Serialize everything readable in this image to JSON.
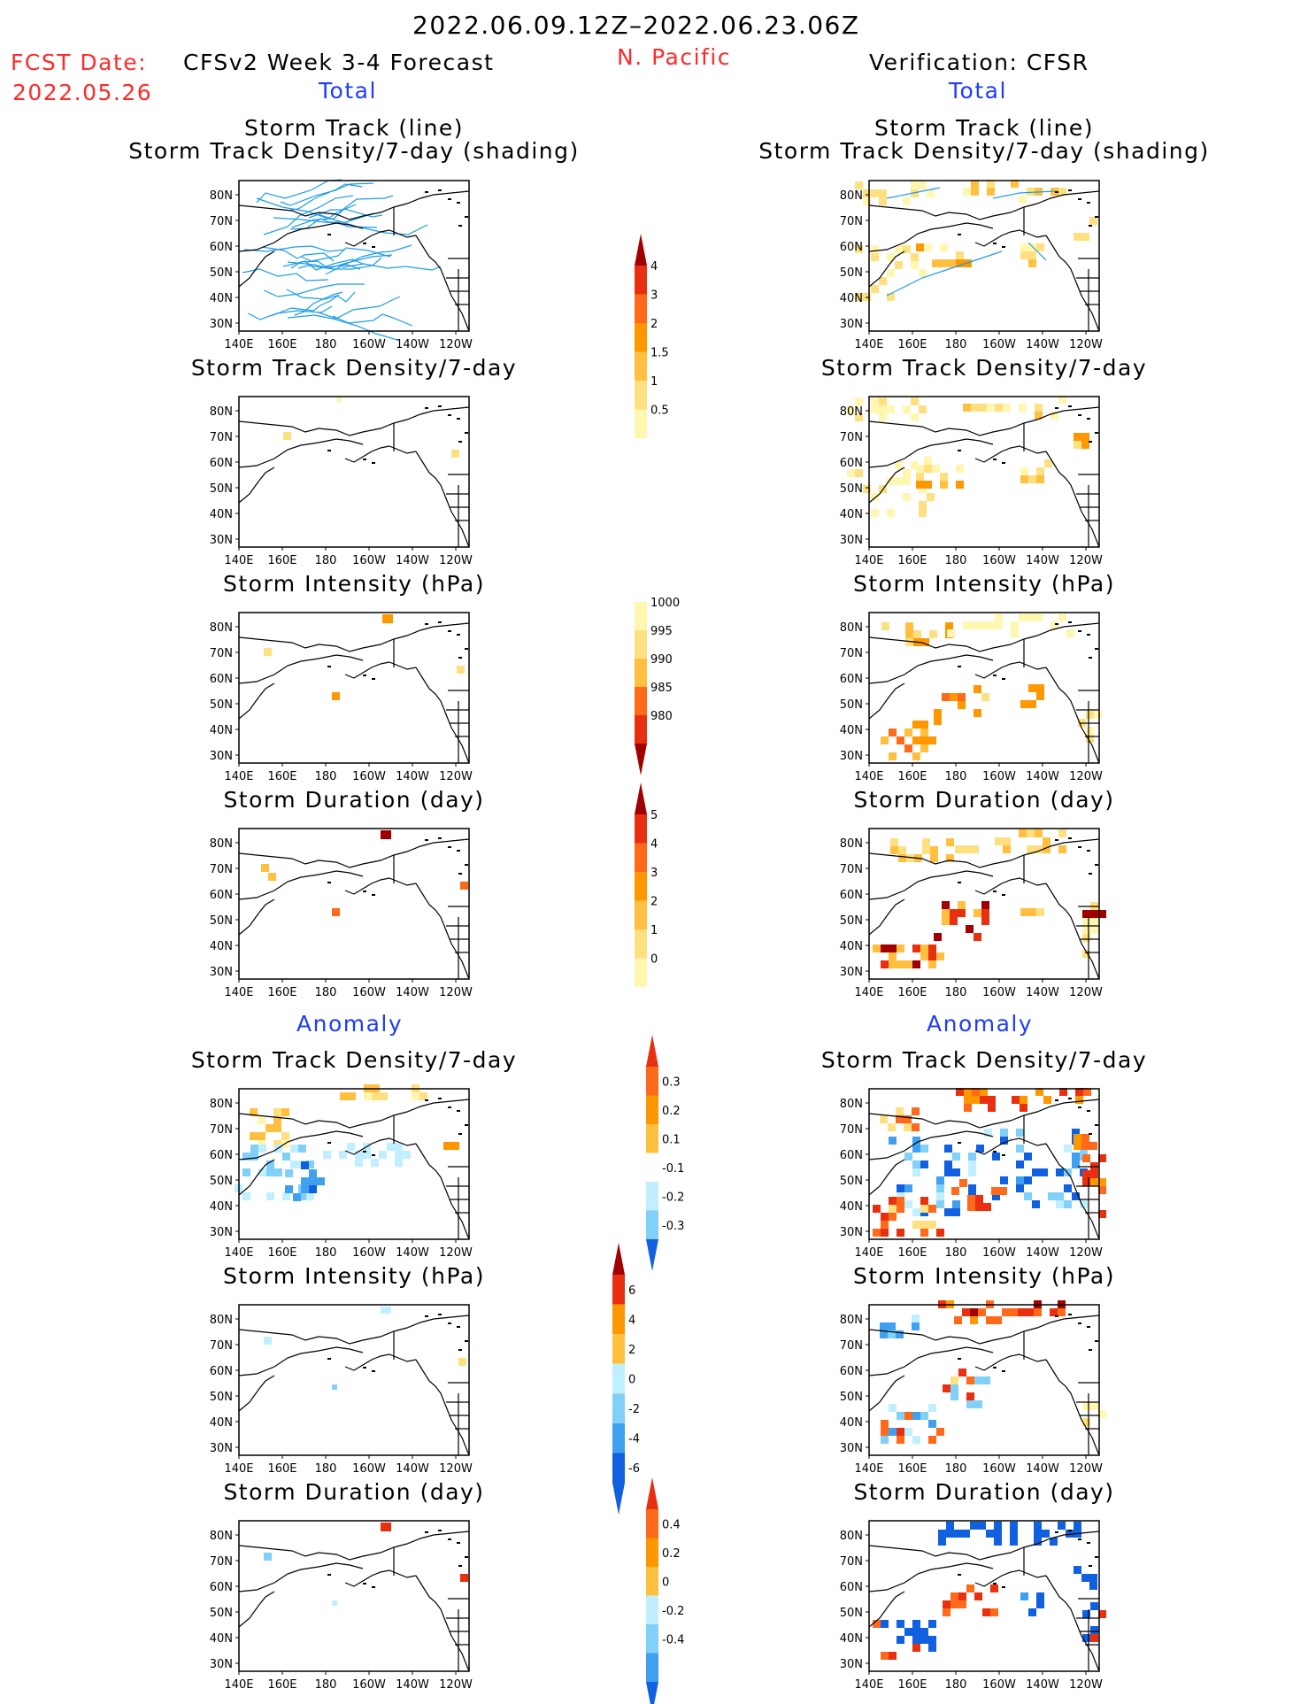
{
  "header": {
    "period": "2022.06.09.12Z–2022.06.23.06Z",
    "fcst_label": "FCST Date:",
    "fcst_date": "2022.05.26",
    "model_title": "CFSv2 Week 3-4 Forecast",
    "region": "N. Pacific",
    "verif_title": "Verification: CFSR",
    "total_left": "Total",
    "total_right": "Total",
    "anomaly_left": "Anomaly",
    "anomaly_right": "Anomaly"
  },
  "panel_titles": {
    "track_line": "Storm Track (line)",
    "track_shading": "Storm Track Density/7-day (shading)",
    "density": "Storm Track Density/7-day",
    "intensity": "Storm Intensity (hPa)",
    "duration": "Storm Duration (day)"
  },
  "axes": {
    "lat_labels": [
      "80N",
      "70N",
      "60N",
      "50N",
      "40N",
      "30N"
    ],
    "lon_labels": [
      "140E",
      "160E",
      "180",
      "160W",
      "140W",
      "120W"
    ]
  },
  "colorbars": {
    "density_total": [
      "0.5",
      "1",
      "1.5",
      "2",
      "3",
      "4"
    ],
    "intensity_total": [
      "1000",
      "995",
      "990",
      "985",
      "980"
    ],
    "duration_total": [
      "0",
      "1",
      "2",
      "3",
      "4",
      "5"
    ],
    "density_anom": [
      "0.3",
      "0.2",
      "0.1",
      "-0.1",
      "-0.2",
      "-0.3"
    ],
    "intensity_anom": [
      "6",
      "4",
      "2",
      "0",
      "-2",
      "-4",
      "-6"
    ],
    "duration_anom": [
      "0.4",
      "0.2",
      "0",
      "-0.2",
      "-0.4"
    ]
  },
  "colors": {
    "warm": [
      "#fff7b0",
      "#ffe080",
      "#ffc040",
      "#ff9800",
      "#ff6a1a",
      "#e83010",
      "#a00000"
    ],
    "cool": [
      "#c0f0ff",
      "#80d0f8",
      "#40a0f0",
      "#1060e0"
    ],
    "track_line": "#1e9ce8"
  }
}
